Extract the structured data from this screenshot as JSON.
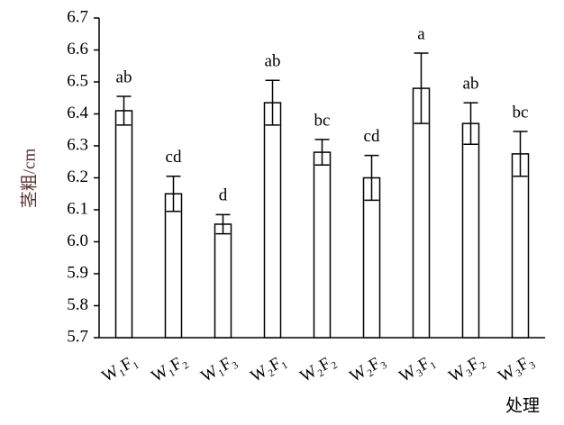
{
  "chart_data": {
    "type": "bar",
    "y_label": "茎粗/cm",
    "x_label": "处理",
    "categories": [
      "W₁F₁",
      "W₁F₂",
      "W₁F₃",
      "W₂F₁",
      "W₂F₂",
      "W₂F₃",
      "W₃F₁",
      "W₃F₂",
      "W₃F₃"
    ],
    "values": [
      6.41,
      6.15,
      6.055,
      6.435,
      6.28,
      6.2,
      6.48,
      6.37,
      6.275
    ],
    "errors": [
      0.045,
      0.055,
      0.03,
      0.07,
      0.04,
      0.07,
      0.11,
      0.065,
      0.07
    ],
    "annotations": [
      "ab",
      "cd",
      "d",
      "ab",
      "bc",
      "cd",
      "a",
      "ab",
      "bc"
    ],
    "color": "#ffffff",
    "ylim": [
      5.7,
      6.7
    ],
    "yticks": [
      5.7,
      5.8,
      5.9,
      {
        "value": 6.0,
        "label": "6.0"
      },
      6.1,
      6.2,
      6.3,
      6.4,
      6.5,
      6.6,
      6.7
    ],
    "grid": false
  }
}
